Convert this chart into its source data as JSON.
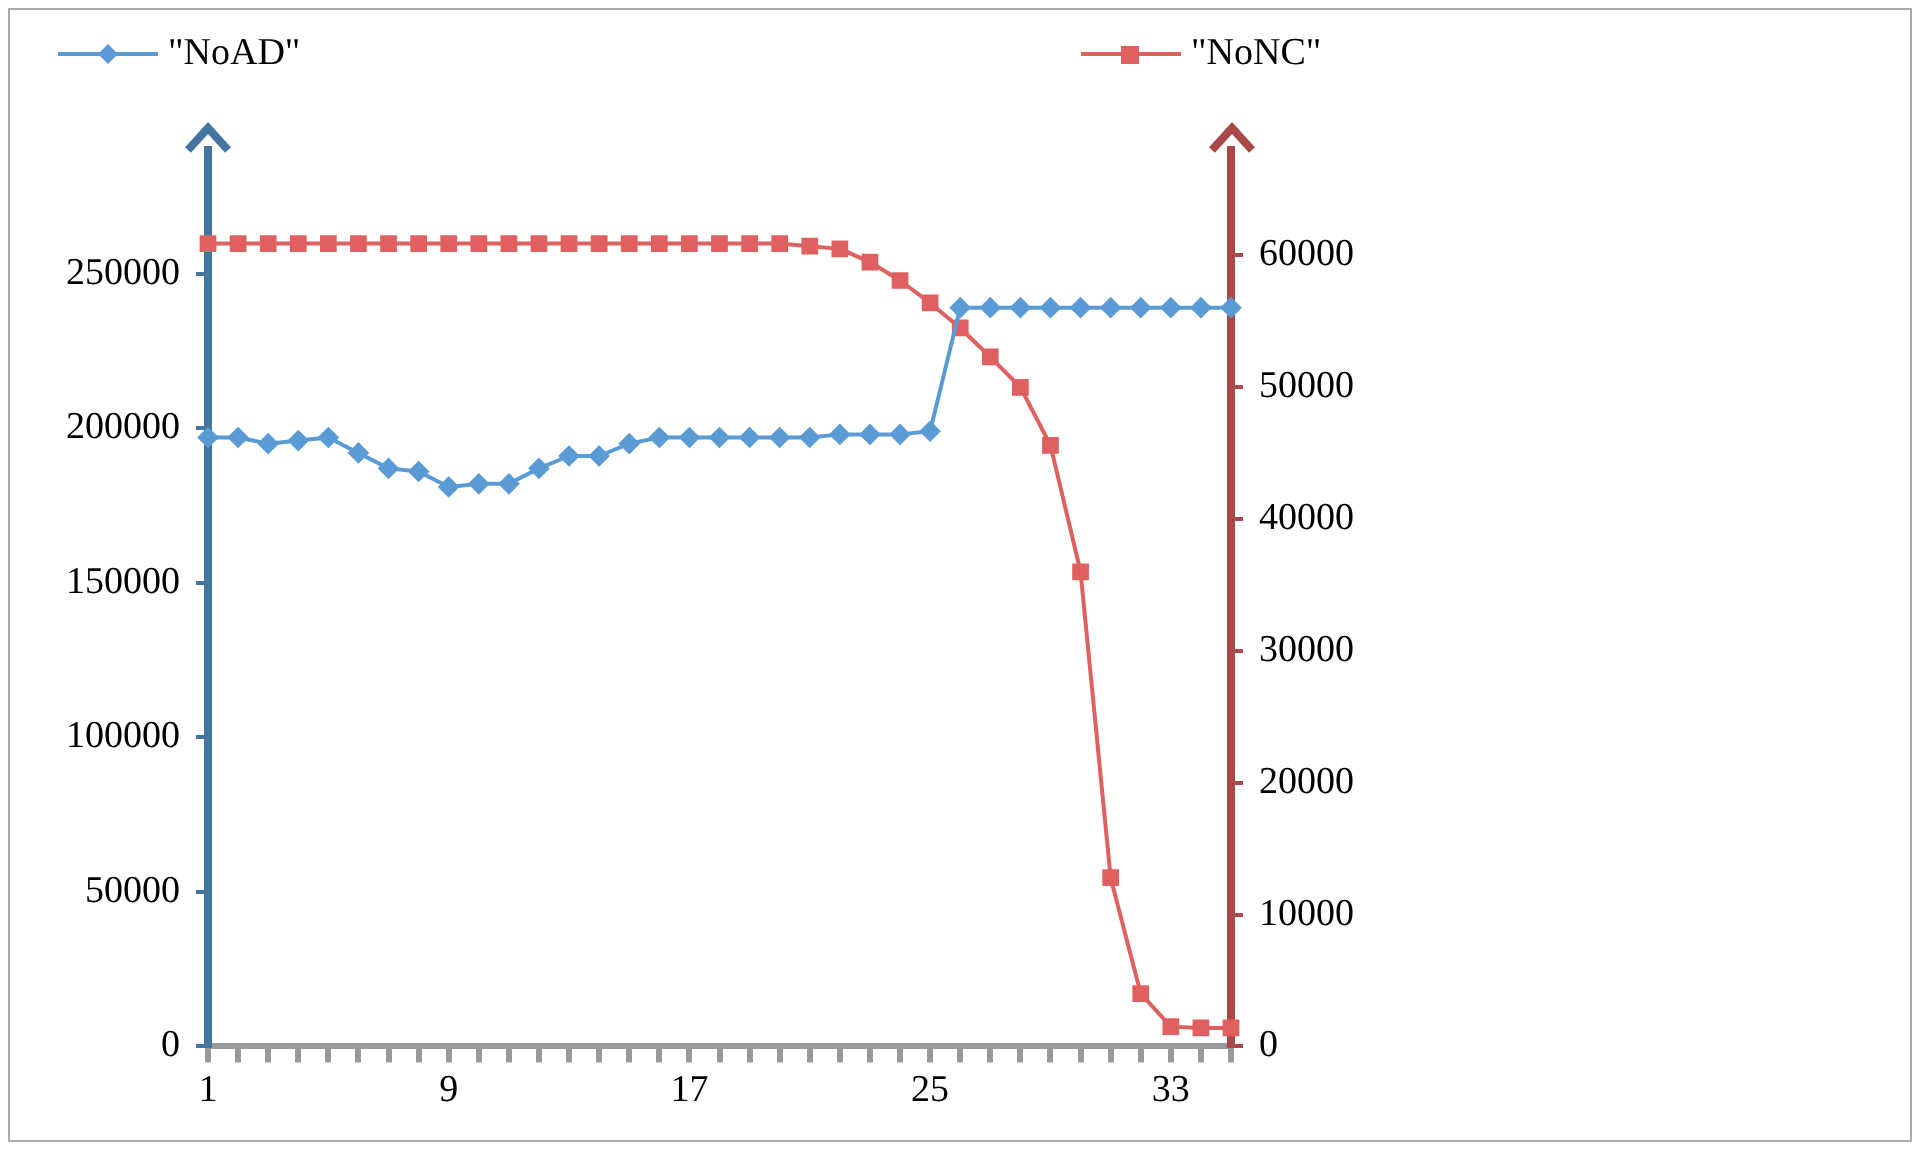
{
  "chart_data": {
    "type": "line",
    "categories": [
      "1",
      null,
      null,
      null,
      null,
      null,
      null,
      null,
      "9",
      null,
      null,
      null,
      null,
      null,
      null,
      null,
      "17",
      null,
      null,
      null,
      null,
      null,
      null,
      null,
      "25",
      null,
      null,
      null,
      null,
      null,
      null,
      null,
      "33",
      null,
      null
    ],
    "series": [
      {
        "name": "\"NoAD\"",
        "color": "#5b9bd5",
        "marker": "diamond",
        "values": [
          197000,
          197000,
          195000,
          196000,
          197000,
          192000,
          187000,
          186000,
          181000,
          182000,
          182000,
          187000,
          191000,
          191000,
          195000,
          197000,
          197000,
          197000,
          197000,
          197000,
          197000,
          198000,
          198000,
          198000,
          199000,
          239000,
          239000,
          239000,
          239000,
          239000,
          239000,
          239000,
          239000,
          239000,
          239000
        ]
      },
      {
        "name": "\"NoNC\"",
        "color": "#e06060",
        "marker": "square",
        "axis": "y2",
        "values": [
          60900,
          60900,
          60900,
          60900,
          60900,
          60900,
          60900,
          60900,
          60900,
          60900,
          60900,
          60900,
          60900,
          60900,
          60900,
          60900,
          60900,
          60900,
          60900,
          60900,
          60700,
          60500,
          59500,
          58100,
          56400,
          54500,
          52300,
          50000,
          45600,
          36000,
          12800,
          4000,
          1500,
          1400,
          1400
        ]
      }
    ],
    "ylim": [
      0,
      290000
    ],
    "yticks": [
      0,
      50000,
      100000,
      150000,
      200000,
      250000
    ],
    "y2lim": [
      0,
      68000
    ],
    "y2ticks": [
      0,
      10000,
      20000,
      30000,
      40000,
      50000,
      60000
    ],
    "grid": false,
    "legend": "top"
  }
}
